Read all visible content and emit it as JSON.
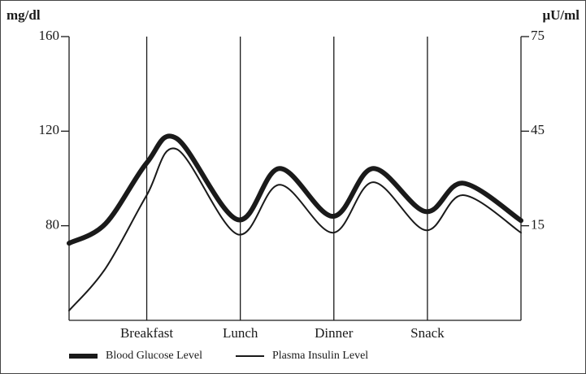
{
  "chart_data": {
    "type": "line",
    "y_label": "mg/dl",
    "y2_label": "μU/ml",
    "x": [
      0.17,
      0.56,
      1,
      1.32,
      1.97,
      2.42,
      2.99,
      3.42,
      3.98,
      4.38,
      5
    ],
    "xlim": [
      0.17,
      5
    ],
    "xticks": [
      {
        "value": 1,
        "label": "Breakfast"
      },
      {
        "value": 2,
        "label": "Lunch"
      },
      {
        "value": 3,
        "label": "Dinner"
      },
      {
        "value": 4,
        "label": "Snack"
      }
    ],
    "ylim": [
      40,
      160
    ],
    "yticks": [
      80,
      120,
      160
    ],
    "y2lim": [
      -15,
      75
    ],
    "y2ticks": [
      15,
      45,
      75
    ],
    "series": [
      {
        "name": "Blood Glucose Level",
        "color": "#1a1a1a",
        "width": 6,
        "values": [
          72.6,
          80.9,
          106.6,
          116.9,
          82.6,
          104.2,
          84,
          104.2,
          86,
          98,
          82.2
        ]
      },
      {
        "name": "Plasma Insulin Level",
        "color": "#1a1a1a",
        "width": 2,
        "axis": "y2",
        "values": [
          -11.9,
          1.5,
          24.7,
          39.3,
          12.3,
          28,
          12.8,
          28.8,
          13.6,
          24.7,
          12.8
        ]
      }
    ]
  }
}
